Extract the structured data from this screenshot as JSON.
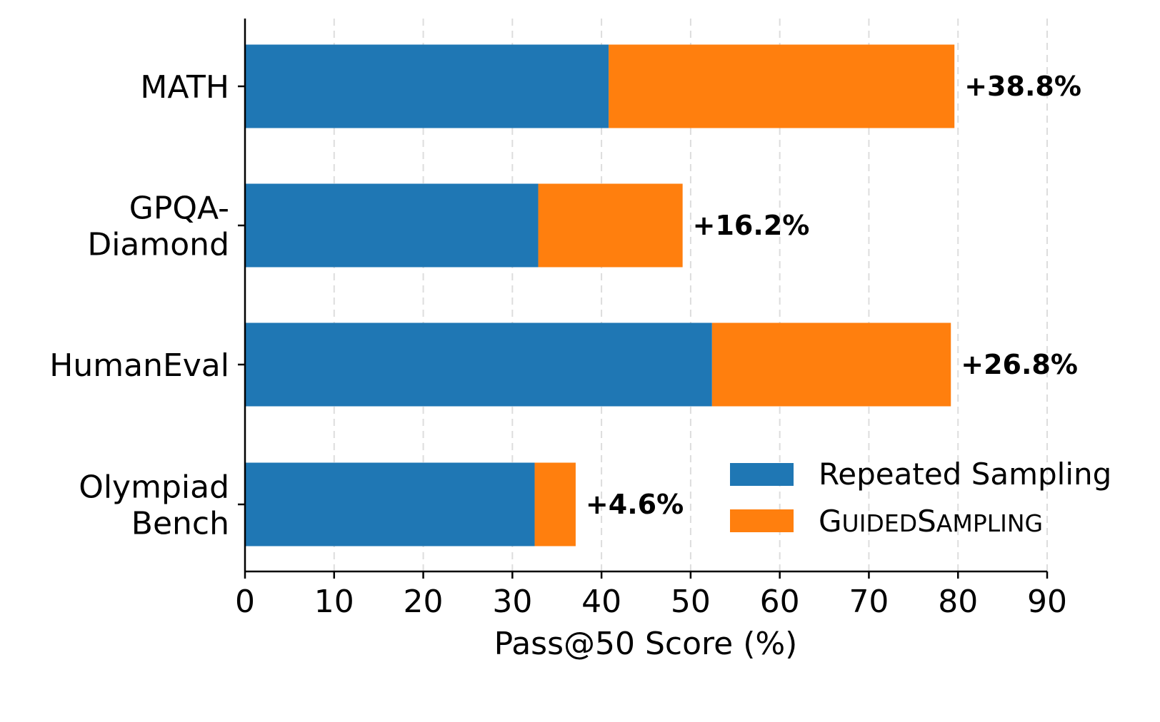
{
  "chart_data": {
    "type": "bar",
    "orientation": "horizontal",
    "stacked": true,
    "categories": [
      [
        "MATH"
      ],
      [
        "GPQA-",
        "Diamond"
      ],
      [
        "HumanEval"
      ],
      [
        "Olympiad",
        "Bench"
      ]
    ],
    "series": [
      {
        "name": "Repeated Sampling",
        "color": "#1f77b4",
        "values": [
          40.8,
          32.9,
          52.4,
          32.5
        ]
      },
      {
        "name": "GuidedSampling",
        "color": "#ff7f0e",
        "values": [
          38.8,
          16.2,
          26.8,
          4.6
        ]
      }
    ],
    "increase_labels": [
      "+38.8%",
      "+16.2%",
      "+26.8%",
      "+4.6%"
    ],
    "xlabel": "Pass@50 Score (%)",
    "xlim": [
      0,
      90
    ],
    "xticks": [
      0,
      10,
      20,
      30,
      40,
      50,
      60,
      70,
      80,
      90
    ],
    "grid": "x-dashed",
    "legend": {
      "position": "bottom-right",
      "entries": [
        {
          "label": "Repeated Sampling",
          "small_caps": false
        },
        {
          "label": "GuidedSampling",
          "small_caps": true
        }
      ]
    }
  }
}
